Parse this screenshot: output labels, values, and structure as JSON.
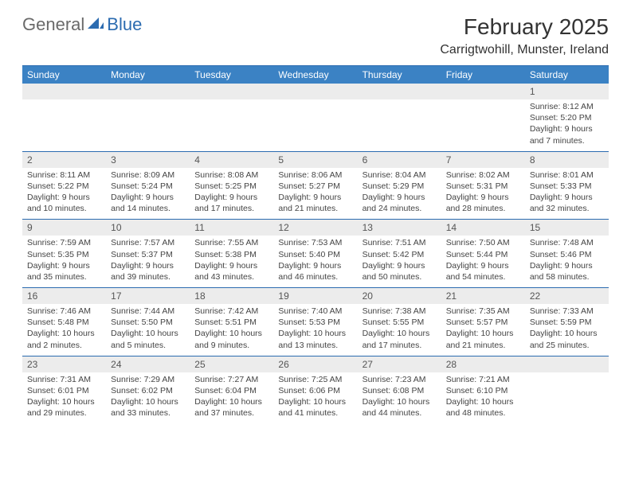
{
  "logo": {
    "general": "General",
    "blue": "Blue"
  },
  "title": "February 2025",
  "location": "Carrigtwohill, Munster, Ireland",
  "day_names": [
    "Sunday",
    "Monday",
    "Tuesday",
    "Wednesday",
    "Thursday",
    "Friday",
    "Saturday"
  ],
  "colors": {
    "header_bg": "#3b82c4",
    "header_text": "#ffffff",
    "rule": "#2b6bb0",
    "daynum_bg": "#ececec",
    "logo_gray": "#6a6a6a",
    "logo_blue": "#2b6bb0"
  },
  "typography": {
    "title_fontsize": 28,
    "subtitle_fontsize": 16,
    "dayhead_fontsize": 12,
    "daynum_fontsize": 12,
    "info_fontsize": 10.5
  },
  "weeks": [
    [
      {
        "n": "",
        "sr": "",
        "ss": "",
        "dl": ""
      },
      {
        "n": "",
        "sr": "",
        "ss": "",
        "dl": ""
      },
      {
        "n": "",
        "sr": "",
        "ss": "",
        "dl": ""
      },
      {
        "n": "",
        "sr": "",
        "ss": "",
        "dl": ""
      },
      {
        "n": "",
        "sr": "",
        "ss": "",
        "dl": ""
      },
      {
        "n": "",
        "sr": "",
        "ss": "",
        "dl": ""
      },
      {
        "n": "1",
        "sr": "Sunrise: 8:12 AM",
        "ss": "Sunset: 5:20 PM",
        "dl": "Daylight: 9 hours and 7 minutes."
      }
    ],
    [
      {
        "n": "2",
        "sr": "Sunrise: 8:11 AM",
        "ss": "Sunset: 5:22 PM",
        "dl": "Daylight: 9 hours and 10 minutes."
      },
      {
        "n": "3",
        "sr": "Sunrise: 8:09 AM",
        "ss": "Sunset: 5:24 PM",
        "dl": "Daylight: 9 hours and 14 minutes."
      },
      {
        "n": "4",
        "sr": "Sunrise: 8:08 AM",
        "ss": "Sunset: 5:25 PM",
        "dl": "Daylight: 9 hours and 17 minutes."
      },
      {
        "n": "5",
        "sr": "Sunrise: 8:06 AM",
        "ss": "Sunset: 5:27 PM",
        "dl": "Daylight: 9 hours and 21 minutes."
      },
      {
        "n": "6",
        "sr": "Sunrise: 8:04 AM",
        "ss": "Sunset: 5:29 PM",
        "dl": "Daylight: 9 hours and 24 minutes."
      },
      {
        "n": "7",
        "sr": "Sunrise: 8:02 AM",
        "ss": "Sunset: 5:31 PM",
        "dl": "Daylight: 9 hours and 28 minutes."
      },
      {
        "n": "8",
        "sr": "Sunrise: 8:01 AM",
        "ss": "Sunset: 5:33 PM",
        "dl": "Daylight: 9 hours and 32 minutes."
      }
    ],
    [
      {
        "n": "9",
        "sr": "Sunrise: 7:59 AM",
        "ss": "Sunset: 5:35 PM",
        "dl": "Daylight: 9 hours and 35 minutes."
      },
      {
        "n": "10",
        "sr": "Sunrise: 7:57 AM",
        "ss": "Sunset: 5:37 PM",
        "dl": "Daylight: 9 hours and 39 minutes."
      },
      {
        "n": "11",
        "sr": "Sunrise: 7:55 AM",
        "ss": "Sunset: 5:38 PM",
        "dl": "Daylight: 9 hours and 43 minutes."
      },
      {
        "n": "12",
        "sr": "Sunrise: 7:53 AM",
        "ss": "Sunset: 5:40 PM",
        "dl": "Daylight: 9 hours and 46 minutes."
      },
      {
        "n": "13",
        "sr": "Sunrise: 7:51 AM",
        "ss": "Sunset: 5:42 PM",
        "dl": "Daylight: 9 hours and 50 minutes."
      },
      {
        "n": "14",
        "sr": "Sunrise: 7:50 AM",
        "ss": "Sunset: 5:44 PM",
        "dl": "Daylight: 9 hours and 54 minutes."
      },
      {
        "n": "15",
        "sr": "Sunrise: 7:48 AM",
        "ss": "Sunset: 5:46 PM",
        "dl": "Daylight: 9 hours and 58 minutes."
      }
    ],
    [
      {
        "n": "16",
        "sr": "Sunrise: 7:46 AM",
        "ss": "Sunset: 5:48 PM",
        "dl": "Daylight: 10 hours and 2 minutes."
      },
      {
        "n": "17",
        "sr": "Sunrise: 7:44 AM",
        "ss": "Sunset: 5:50 PM",
        "dl": "Daylight: 10 hours and 5 minutes."
      },
      {
        "n": "18",
        "sr": "Sunrise: 7:42 AM",
        "ss": "Sunset: 5:51 PM",
        "dl": "Daylight: 10 hours and 9 minutes."
      },
      {
        "n": "19",
        "sr": "Sunrise: 7:40 AM",
        "ss": "Sunset: 5:53 PM",
        "dl": "Daylight: 10 hours and 13 minutes."
      },
      {
        "n": "20",
        "sr": "Sunrise: 7:38 AM",
        "ss": "Sunset: 5:55 PM",
        "dl": "Daylight: 10 hours and 17 minutes."
      },
      {
        "n": "21",
        "sr": "Sunrise: 7:35 AM",
        "ss": "Sunset: 5:57 PM",
        "dl": "Daylight: 10 hours and 21 minutes."
      },
      {
        "n": "22",
        "sr": "Sunrise: 7:33 AM",
        "ss": "Sunset: 5:59 PM",
        "dl": "Daylight: 10 hours and 25 minutes."
      }
    ],
    [
      {
        "n": "23",
        "sr": "Sunrise: 7:31 AM",
        "ss": "Sunset: 6:01 PM",
        "dl": "Daylight: 10 hours and 29 minutes."
      },
      {
        "n": "24",
        "sr": "Sunrise: 7:29 AM",
        "ss": "Sunset: 6:02 PM",
        "dl": "Daylight: 10 hours and 33 minutes."
      },
      {
        "n": "25",
        "sr": "Sunrise: 7:27 AM",
        "ss": "Sunset: 6:04 PM",
        "dl": "Daylight: 10 hours and 37 minutes."
      },
      {
        "n": "26",
        "sr": "Sunrise: 7:25 AM",
        "ss": "Sunset: 6:06 PM",
        "dl": "Daylight: 10 hours and 41 minutes."
      },
      {
        "n": "27",
        "sr": "Sunrise: 7:23 AM",
        "ss": "Sunset: 6:08 PM",
        "dl": "Daylight: 10 hours and 44 minutes."
      },
      {
        "n": "28",
        "sr": "Sunrise: 7:21 AM",
        "ss": "Sunset: 6:10 PM",
        "dl": "Daylight: 10 hours and 48 minutes."
      },
      {
        "n": "",
        "sr": "",
        "ss": "",
        "dl": ""
      }
    ]
  ]
}
